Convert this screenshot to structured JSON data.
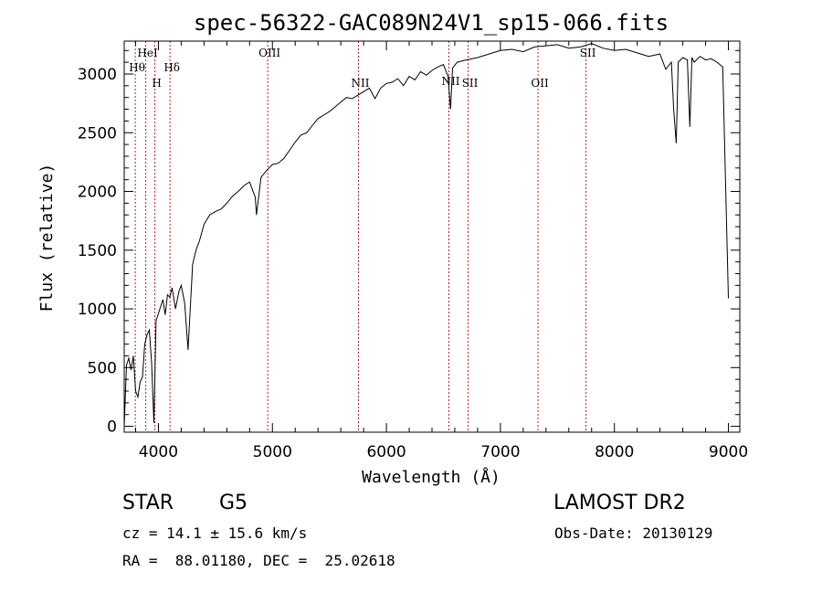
{
  "chart_data": {
    "type": "line",
    "title": "spec-56322-GAC089N24V1_sp15-066.fits",
    "xlabel": "Wavelength (Å)",
    "ylabel": "Flux (relative)",
    "xlim": [
      3700,
      9100
    ],
    "ylim": [
      -50,
      3280
    ],
    "xticks": [
      4000,
      5000,
      6000,
      7000,
      8000,
      9000
    ],
    "yticks": [
      0,
      500,
      1000,
      1500,
      2000,
      2500,
      3000
    ],
    "grid": false,
    "line_color": "#000000",
    "marker_color": "#b22222",
    "spectral_lines": [
      {
        "name": "Hθ",
        "wavelength": 3797,
        "label_row": "mid"
      },
      {
        "name": "HeI",
        "wavelength": 3889,
        "label_row": "top"
      },
      {
        "name": "H",
        "wavelength": 3969,
        "label_row": "low"
      },
      {
        "name": "Hδ",
        "wavelength": 4102,
        "label_row": "mid"
      },
      {
        "name": "OIII",
        "wavelength": 4959,
        "label_row": "top"
      },
      {
        "name": "NII",
        "wavelength": 6548,
        "label_row": "upper"
      },
      {
        "name": "SII",
        "wavelength": 6717,
        "label_row": "low"
      },
      {
        "name": "OII",
        "wavelength": 7330,
        "label_row": "low"
      },
      {
        "name": "SII",
        "wavelength": 7751,
        "label_row": "top"
      },
      {
        "name": "NII",
        "wavelength": 5755,
        "label_row": "low"
      }
    ],
    "series": [
      {
        "x": [
          3700,
          3720,
          3740,
          3760,
          3780,
          3800,
          3820,
          3840,
          3860,
          3880,
          3900,
          3920,
          3940,
          3960,
          3980,
          4000,
          4020,
          4040,
          4060,
          4080,
          4100,
          4120,
          4150,
          4180,
          4200,
          4230,
          4260,
          4300,
          4330,
          4360,
          4400,
          4450,
          4500,
          4550,
          4600,
          4650,
          4700,
          4750,
          4800,
          4850,
          4860,
          4900,
          4950,
          5000,
          5050,
          5100,
          5150,
          5200,
          5250,
          5300,
          5350,
          5400,
          5450,
          5500,
          5550,
          5600,
          5650,
          5700,
          5750,
          5800,
          5850,
          5900,
          5950,
          6000,
          6050,
          6100,
          6150,
          6200,
          6250,
          6300,
          6350,
          6400,
          6450,
          6500,
          6540,
          6563,
          6580,
          6620,
          6700,
          6800,
          6900,
          7000,
          7100,
          7200,
          7300,
          7400,
          7500,
          7600,
          7700,
          7800,
          7900,
          8000,
          8100,
          8200,
          8300,
          8400,
          8450,
          8500,
          8520,
          8542,
          8560,
          8600,
          8640,
          8662,
          8680,
          8700,
          8750,
          8800,
          8850,
          8900,
          8950,
          9000
        ],
        "y": [
          0,
          520,
          580,
          480,
          600,
          300,
          250,
          380,
          420,
          700,
          780,
          820,
          540,
          30,
          900,
          960,
          1020,
          1080,
          950,
          1120,
          1100,
          1180,
          1000,
          1150,
          1200,
          1050,
          650,
          1380,
          1500,
          1580,
          1720,
          1800,
          1830,
          1850,
          1900,
          1960,
          2000,
          2050,
          2080,
          1950,
          1800,
          2120,
          2180,
          2230,
          2240,
          2280,
          2350,
          2420,
          2480,
          2500,
          2560,
          2620,
          2650,
          2680,
          2720,
          2760,
          2800,
          2790,
          2820,
          2850,
          2880,
          2790,
          2880,
          2920,
          2930,
          2960,
          2900,
          2980,
          2950,
          3020,
          2990,
          3030,
          3060,
          3080,
          2980,
          2700,
          3050,
          3100,
          3120,
          3140,
          3170,
          3200,
          3210,
          3190,
          3230,
          3240,
          3250,
          3220,
          3230,
          3260,
          3220,
          3200,
          3210,
          3180,
          3150,
          3170,
          3040,
          3100,
          2700,
          2410,
          3100,
          3140,
          3120,
          2550,
          3140,
          3100,
          3150,
          3120,
          3130,
          3100,
          3060,
          1090
        ]
      }
    ]
  },
  "info": {
    "object_class": "STAR",
    "subclass": "G5",
    "survey": "LAMOST DR2",
    "redshift": "cz = 14.1 ± 15.6 km/s",
    "obs_date": "Obs-Date: 20130129",
    "coords": "RA =  88.01180, DEC =  25.02618"
  }
}
